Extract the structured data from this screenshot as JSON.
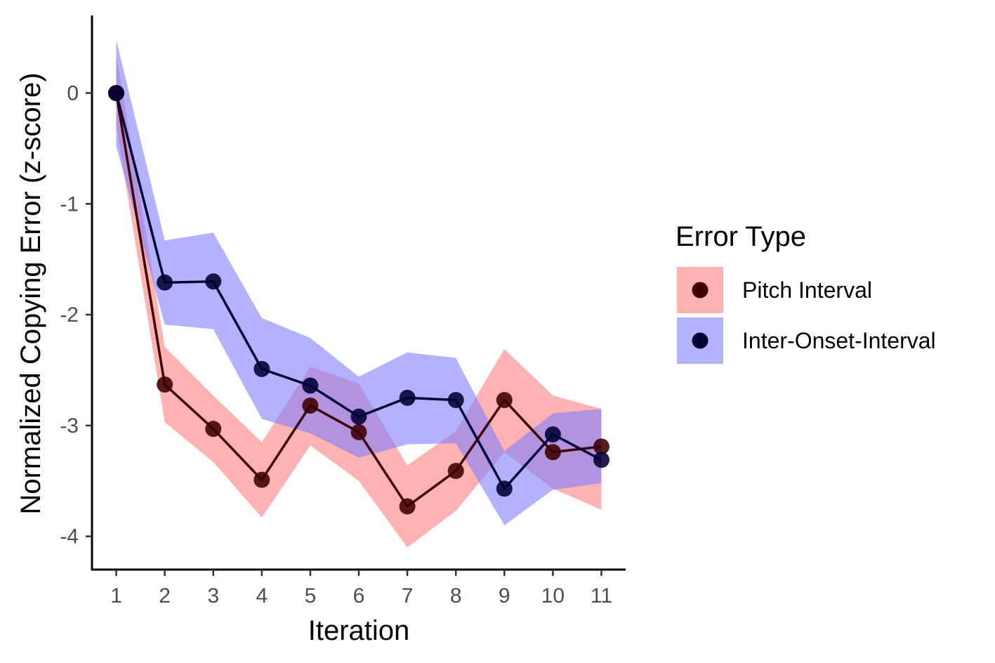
{
  "chart_data": {
    "type": "line",
    "title": "",
    "xlabel": "Iteration",
    "ylabel": "Normalized Copying Error (z-score)",
    "x": [
      1,
      2,
      3,
      4,
      5,
      6,
      7,
      8,
      9,
      10,
      11
    ],
    "xlim": [
      0.5,
      11.5
    ],
    "ylim": [
      -4.3,
      0.7
    ],
    "yticks": [
      0,
      -1,
      -2,
      -3,
      -4
    ],
    "yticklabels": [
      "0",
      "-1",
      "-2",
      "-3",
      "-4"
    ],
    "xticklabels": [
      "1",
      "2",
      "3",
      "4",
      "5",
      "6",
      "7",
      "8",
      "9",
      "10",
      "11"
    ],
    "grid": false,
    "legend": {
      "title": "Error Type",
      "position": "right"
    },
    "series": [
      {
        "name": "Pitch Interval",
        "line_color": "#3d0000",
        "point_color": "#3d0000",
        "ribbon_color": "#ff7f7f",
        "values": [
          0,
          -2.63,
          -3.03,
          -3.49,
          -2.82,
          -3.06,
          -3.73,
          -3.41,
          -2.77,
          -3.24,
          -3.19
        ],
        "lower": [
          -0.3,
          -2.97,
          -3.33,
          -3.83,
          -3.18,
          -3.5,
          -4.1,
          -3.77,
          -3.24,
          -3.57,
          -3.76
        ],
        "upper": [
          0.35,
          -2.29,
          -2.73,
          -3.15,
          -2.47,
          -2.62,
          -3.36,
          -3.05,
          -2.31,
          -2.73,
          -2.85
        ]
      },
      {
        "name": "Inter-Onset-Interval",
        "line_color": "#000033",
        "point_color": "#000033",
        "ribbon_color": "#7f7fff",
        "values": [
          0,
          -1.71,
          -1.7,
          -2.49,
          -2.64,
          -2.92,
          -2.75,
          -2.77,
          -3.57,
          -3.08,
          -3.31
        ],
        "lower": [
          -0.48,
          -2.09,
          -2.13,
          -2.94,
          -3.07,
          -3.29,
          -3.17,
          -3.16,
          -3.9,
          -3.58,
          -3.52
        ],
        "upper": [
          0.48,
          -1.33,
          -1.26,
          -2.03,
          -2.21,
          -2.56,
          -2.34,
          -2.39,
          -3.23,
          -2.89,
          -2.85
        ]
      }
    ]
  }
}
